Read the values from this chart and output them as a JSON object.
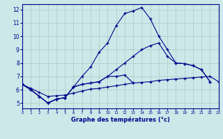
{
  "title": "Graphe des températures (°c)",
  "bg_color": "#cce8e8",
  "line_color": "#00008b",
  "grid_color": "#b0c8c8",
  "ylim": [
    4.6,
    12.4
  ],
  "xlim": [
    0,
    23
  ],
  "yticks": [
    5,
    6,
    7,
    8,
    9,
    10,
    11,
    12
  ],
  "xticks": [
    0,
    1,
    2,
    3,
    4,
    5,
    6,
    7,
    8,
    9,
    10,
    11,
    12,
    13,
    14,
    15,
    16,
    17,
    18,
    19,
    20,
    21,
    22,
    23
  ],
  "curve_big": {
    "x": [
      0,
      1,
      2,
      3,
      4,
      5,
      6,
      7,
      8,
      9,
      10,
      11,
      12,
      13,
      14,
      15,
      16,
      17,
      18,
      19,
      20,
      21,
      22
    ],
    "y": [
      6.4,
      6.0,
      5.5,
      5.0,
      5.3,
      5.4,
      6.2,
      7.0,
      7.7,
      8.8,
      9.5,
      10.8,
      11.7,
      11.9,
      12.15,
      11.3,
      10.0,
      9.0,
      8.0,
      7.95,
      7.8,
      7.5,
      6.6
    ]
  },
  "curve_mid": {
    "x": [
      0,
      1,
      2,
      3,
      4,
      5,
      6,
      7,
      8,
      9,
      10,
      11,
      12,
      13,
      14,
      15,
      16,
      17,
      18,
      19,
      20,
      21,
      22
    ],
    "y": [
      6.4,
      6.0,
      5.5,
      5.0,
      5.3,
      5.4,
      6.2,
      6.4,
      6.5,
      6.6,
      7.0,
      7.5,
      8.0,
      8.5,
      9.0,
      9.3,
      9.5,
      8.5,
      8.0,
      7.95,
      7.8,
      7.5,
      6.6
    ]
  },
  "curve_flat": {
    "x": [
      0,
      1,
      2,
      3,
      4,
      5,
      6,
      7,
      8,
      9,
      10,
      11,
      12,
      13,
      14,
      15,
      16,
      17,
      18,
      19,
      20,
      21,
      22,
      23
    ],
    "y": [
      6.4,
      6.1,
      5.8,
      5.5,
      5.55,
      5.6,
      5.75,
      5.9,
      6.05,
      6.1,
      6.2,
      6.3,
      6.4,
      6.5,
      6.55,
      6.6,
      6.7,
      6.75,
      6.8,
      6.85,
      6.9,
      6.95,
      7.0,
      6.6
    ]
  },
  "curve_low": {
    "x": [
      0,
      1,
      2,
      3,
      4,
      5,
      6,
      7,
      8,
      9,
      10,
      11,
      12,
      13
    ],
    "y": [
      6.4,
      6.0,
      5.5,
      5.0,
      5.3,
      5.4,
      6.2,
      6.4,
      6.5,
      6.6,
      7.0,
      7.0,
      7.1,
      6.5
    ]
  }
}
